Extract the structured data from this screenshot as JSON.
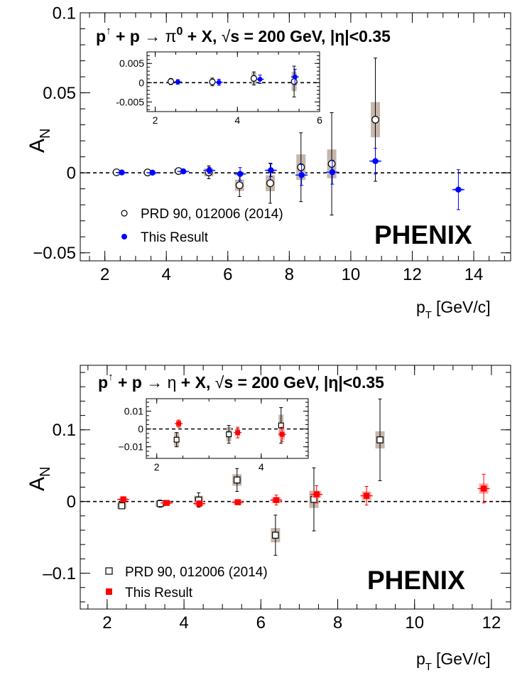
{
  "chart_data": [
    {
      "type": "scatter",
      "title": "p↑ + p → π⁰ + X,  √s = 200 GeV, |η|<0.35",
      "title_parts": {
        "p": "p",
        "arrow_up": "↑",
        "plus_p": " + p ",
        "react": "→",
        "particle_prefix": " π",
        "particle_sup": "0",
        "plus_x": " + X,  ",
        "sqrt": "√",
        "s_rest": "s = 200 GeV, |η|<0.35"
      },
      "xlabel": "p",
      "xlabel_sub": "T",
      "xlabel_unit": "[GeV/c]",
      "ylabel": "A",
      "ylabel_sub": "N",
      "xlim": [
        1.2,
        15.2
      ],
      "ylim": [
        -0.055,
        0.1
      ],
      "xticks": [
        "2",
        "4",
        "6",
        "8",
        "10",
        "12",
        "14"
      ],
      "yticks": [
        "0.1",
        "0.05",
        "0",
        "−0.05"
      ],
      "experiment": "PHENIX",
      "legend_position": "bottom-left",
      "series": [
        {
          "name": "PRD 90, 012006 (2014)",
          "marker": "open-circle",
          "color": "#000000",
          "x": [
            2.38,
            3.39,
            4.4,
            5.38,
            6.38,
            7.38,
            8.38,
            9.38,
            10.8
          ],
          "y": [
            0.0003,
            0.0002,
            0.0011,
            0.0003,
            -0.0078,
            -0.0065,
            0.0035,
            0.0056,
            0.0332
          ],
          "err": [
            0.0008,
            0.001,
            0.0017,
            0.004,
            0.007,
            0.0125,
            0.0215,
            0.032,
            0.0385
          ],
          "sys": [
            0.0006,
            0.0008,
            0.0015,
            0.0025,
            0.0035,
            0.005,
            0.008,
            0.009,
            0.011
          ]
        },
        {
          "name": "This Result",
          "marker": "filled-circle",
          "color": "#0000ff",
          "x": [
            2.55,
            3.55,
            4.55,
            5.4,
            6.4,
            7.4,
            8.4,
            9.4,
            10.8,
            13.5
          ],
          "y": [
            0.0002,
            0.0001,
            0.0009,
            0.0015,
            -0.0007,
            0.0016,
            -0.0014,
            0.0004,
            0.0073,
            -0.0105
          ],
          "err": [
            0.0006,
            0.0008,
            0.0011,
            0.002,
            0.004,
            0.004,
            0.0065,
            0.0075,
            0.008,
            0.0125
          ],
          "sys": [
            0.0001,
            0.0001,
            0.0002,
            0.0005,
            0.0005,
            0.0005,
            0.0008,
            0.0008,
            0.0009,
            0.0009
          ]
        }
      ],
      "inset": {
        "xlim": [
          1.8,
          6.0
        ],
        "ylim": [
          -0.0075,
          0.008
        ],
        "xticks": [
          "2",
          "4",
          "6"
        ],
        "yticks": [
          "0.005",
          "0",
          "-0.005"
        ]
      }
    },
    {
      "type": "scatter",
      "title": "p↑ + p → η + X,  √s = 200 GeV, |η|<0.35",
      "title_parts": {
        "p": "p",
        "arrow_up": "↑",
        "plus_p": " + p ",
        "react": "→",
        "particle": " η",
        "plus_x": " + X,  ",
        "sqrt": "√",
        "s_rest": "s = 200 GeV, |η|<0.35"
      },
      "xlabel": "p",
      "xlabel_sub": "T",
      "xlabel_unit": "[GeV/c]",
      "ylabel": "A",
      "ylabel_sub": "N",
      "xlim": [
        1.3,
        12.5
      ],
      "ylim": [
        -0.15,
        0.19
      ],
      "xticks": [
        "2",
        "4",
        "6",
        "8",
        "10",
        "12"
      ],
      "yticks": [
        "0.1",
        "0",
        "–0.1"
      ],
      "experiment": "PHENIX",
      "legend_position": "bottom-left",
      "series": [
        {
          "name": "PRD 90, 012006 (2014)",
          "marker": "open-square",
          "color": "#000000",
          "x": [
            2.38,
            3.38,
            4.38,
            5.38,
            6.38,
            7.38,
            9.1
          ],
          "y": [
            -0.006,
            -0.003,
            0.002,
            0.03,
            -0.047,
            0.003,
            0.086
          ],
          "err": [
            0.004,
            0.005,
            0.01,
            0.016,
            0.028,
            0.044,
            0.057
          ],
          "sys": [
            0.004,
            0.004,
            0.006,
            0.008,
            0.01,
            0.012,
            0.012
          ]
        },
        {
          "name": "This Result",
          "marker": "filled-square",
          "color": "#ff0000",
          "x": [
            2.42,
            3.55,
            4.4,
            5.4,
            6.4,
            7.45,
            8.75,
            11.8
          ],
          "y": [
            0.003,
            -0.002,
            -0.003,
            -0.001,
            0.002,
            0.01,
            0.008,
            0.018
          ],
          "err": [
            0.002,
            0.003,
            0.004,
            0.003,
            0.007,
            0.012,
            0.013,
            0.02
          ],
          "sys": [
            0.002,
            0.002,
            0.003,
            0.003,
            0.004,
            0.005,
            0.006,
            0.007
          ]
        }
      ],
      "inset": {
        "xlim": [
          1.8,
          4.9
        ],
        "ylim": [
          -0.0165,
          0.017
        ],
        "xticks": [
          "2",
          "4"
        ],
        "yticks": [
          "0.01",
          "0",
          "−0.01"
        ]
      }
    }
  ]
}
